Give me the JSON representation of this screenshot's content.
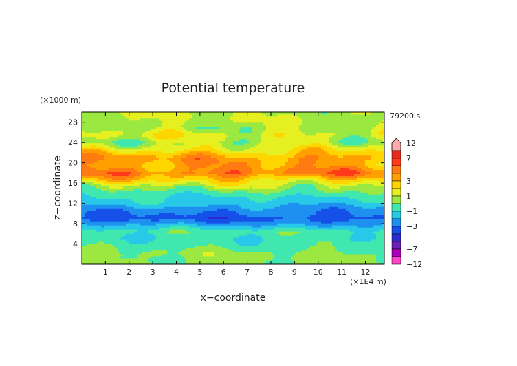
{
  "chart_data": {
    "type": "heatmap",
    "title": "Potential temperature",
    "xlabel": "x−coordinate",
    "ylabel": "z−coordinate",
    "x_unit": "(×1E4 m)",
    "y_unit": "(×1000 m)",
    "time_label": "79200 s",
    "xlim": [
      0,
      12.8
    ],
    "ylim": [
      0,
      30
    ],
    "x_ticks": [
      "1",
      "2",
      "3",
      "4",
      "5",
      "6",
      "7",
      "8",
      "9",
      "10",
      "11",
      "12"
    ],
    "y_ticks": [
      "4",
      "8",
      "12",
      "16",
      "20",
      "24",
      "28"
    ],
    "colorbar": {
      "tick_labels": [
        "12",
        "7",
        "3",
        "1",
        "−1",
        "−3",
        "−7",
        "−12"
      ],
      "levels": [
        -12,
        -9,
        -7,
        -5,
        -4,
        -3,
        -2,
        -1,
        0,
        1,
        2,
        3,
        4,
        5,
        7,
        9,
        12
      ],
      "colors": [
        "#ff44cc",
        "#aa00bb",
        "#6a1fb0",
        "#2a2ad0",
        "#1550e8",
        "#1e90f0",
        "#28c8e8",
        "#40e8b0",
        "#9be840",
        "#e6f020",
        "#ffd500",
        "#ffa000",
        "#ff7a10",
        "#ff3a1a",
        "#e62a20",
        "#ffaaaa"
      ]
    },
    "z_profile": [
      {
        "z": 0.5,
        "value": 0.2
      },
      {
        "z": 2,
        "value": 0.3
      },
      {
        "z": 3.5,
        "value": -0.3
      },
      {
        "z": 5,
        "value": -0.8
      },
      {
        "z": 6.5,
        "value": -0.4
      },
      {
        "z": 7.5,
        "value": -1.6
      },
      {
        "z": 9,
        "value": -3.4
      },
      {
        "z": 10.5,
        "value": -2.8
      },
      {
        "z": 12,
        "value": -1.6
      },
      {
        "z": 13.5,
        "value": -0.9
      },
      {
        "z": 15,
        "value": 0.2
      },
      {
        "z": 16.5,
        "value": 2.2
      },
      {
        "z": 18,
        "value": 4.4
      },
      {
        "z": 19.5,
        "value": 3.4
      },
      {
        "z": 21,
        "value": 3.6
      },
      {
        "z": 22.5,
        "value": 2.0
      },
      {
        "z": 24,
        "value": 0.6
      },
      {
        "z": 25.5,
        "value": 1.4
      },
      {
        "z": 27,
        "value": 0.7
      },
      {
        "z": 28.5,
        "value": 0.9
      },
      {
        "z": 30,
        "value": 0.8
      }
    ]
  }
}
